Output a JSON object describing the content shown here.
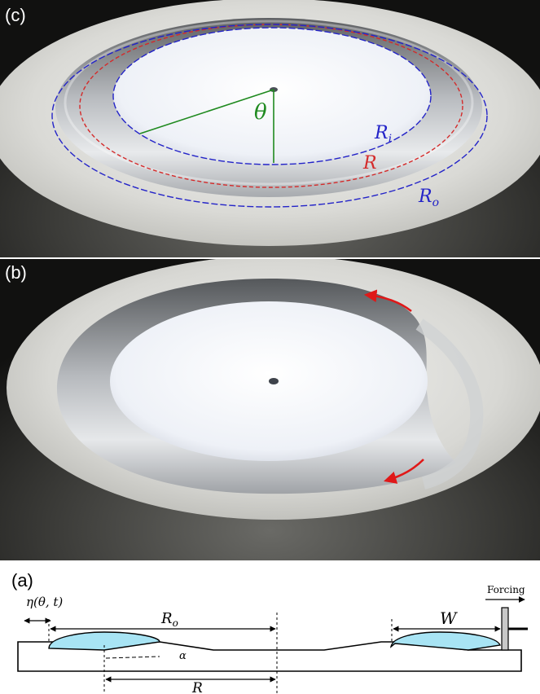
{
  "panels": {
    "c": {
      "label": "(c)",
      "theta": "θ",
      "r_i_main": "R",
      "r_i_sub": "i",
      "r_main": "R",
      "r_o_main": "R",
      "r_o_sub": "o"
    },
    "b": {
      "label": "(b)"
    },
    "a": {
      "label": "(a)",
      "eta": "η(θ, t)",
      "r_o_main": "R",
      "r_o_sub": "o",
      "alpha": "α",
      "r_main": "R",
      "w": "W",
      "forcing": "Forcing"
    }
  },
  "colors": {
    "r_i": "#2323c8",
    "r": "#d42a2a",
    "r_o": "#2323c8",
    "theta_lines": "#1f8a1f",
    "arrows": "#e01818",
    "fluid": "#a8e4f4"
  }
}
